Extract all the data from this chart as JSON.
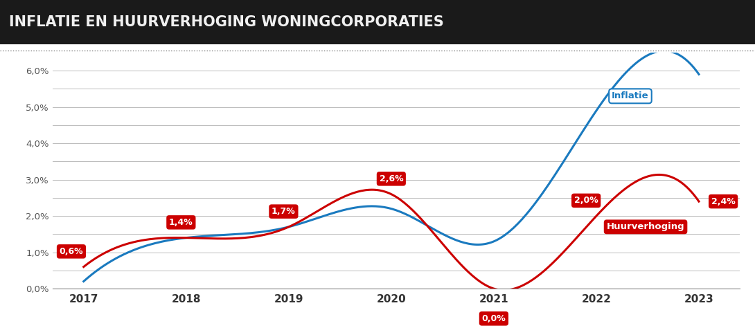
{
  "title": "INFLATIE EN HUURVERHOGING WONINGCORPORATIES",
  "title_fontsize": 15,
  "title_color": "#1a1a1a",
  "background_color": "#ffffff",
  "title_bg_color": "#1a1a1a",
  "inflatie_x": [
    2017,
    2018,
    2019,
    2020,
    2021,
    2022,
    2023
  ],
  "inflatie_y": [
    0.002,
    0.014,
    0.017,
    0.022,
    0.013,
    0.049,
    0.059
  ],
  "huurverhoging_x": [
    2017,
    2018,
    2019,
    2020,
    2021,
    2022,
    2023
  ],
  "huurverhoging_y": [
    0.006,
    0.014,
    0.017,
    0.026,
    0.0,
    0.02,
    0.024
  ],
  "inflatie_color": "#1a7abf",
  "huurverhoging_color": "#cc0000",
  "huurverhoging_labels": [
    "0,6%",
    "1,4%",
    "1,7%",
    "2,6%",
    "0,0%",
    "2,0%",
    "2,4%"
  ],
  "label_bg_color": "#cc0000",
  "label_text_color": "#ffffff",
  "inflatie_label": "Inflatie",
  "huurverhoging_label": "Huurverhoging",
  "inflatie_label_color": "#1a7abf",
  "inflatie_label_bg": "#ffffff",
  "inflatie_label_border": "#1a7abf",
  "ylim": [
    0.0,
    0.065
  ],
  "yticks": [
    0.0,
    0.01,
    0.02,
    0.03,
    0.04,
    0.05,
    0.06
  ],
  "ytick_labels": [
    "0,0%",
    "1,0%",
    "2,0%",
    "3,0%",
    "4,0%",
    "5,0%",
    "6,0%"
  ],
  "xlim": [
    2016.7,
    2023.4
  ],
  "xticks": [
    2017,
    2018,
    2019,
    2020,
    2021,
    2022,
    2023
  ],
  "grid_color": "#b0b0b0",
  "line_width": 2.2,
  "separator_color": "#888888",
  "separator_dot_color": "#888888"
}
